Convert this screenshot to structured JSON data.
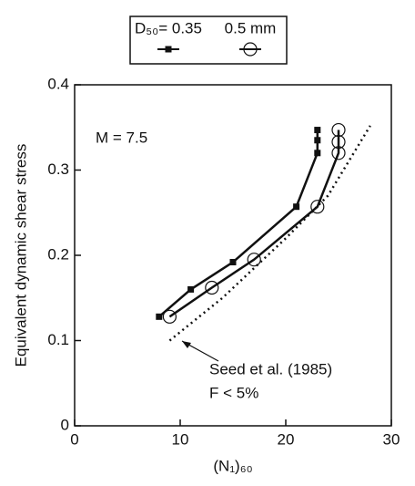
{
  "chart_data": {
    "type": "line",
    "xlabel": "(N₁)₆₀",
    "ylabel": "Equivalent dynamic shear stress",
    "xlim": [
      0,
      30
    ],
    "xticks": [
      0,
      10,
      20,
      30
    ],
    "ylim": [
      0,
      0.4
    ],
    "yticks": [
      0,
      0.1,
      0.2,
      0.3,
      0.4
    ],
    "series": [
      {
        "name": "D₅₀= 0.35",
        "color": "#111111",
        "marker": "square",
        "x": [
          8,
          11,
          15,
          21,
          23,
          23,
          23
        ],
        "values": [
          0.128,
          0.16,
          0.192,
          0.257,
          0.32,
          0.335,
          0.347
        ]
      },
      {
        "name": "0.5 mm",
        "color": "#111111",
        "marker": "circle",
        "x": [
          9,
          13,
          17,
          23,
          25,
          25,
          25
        ],
        "values": [
          0.128,
          0.162,
          0.195,
          0.257,
          0.32,
          0.333,
          0.347
        ]
      }
    ],
    "reference": {
      "x": [
        9,
        14,
        20,
        24,
        28
      ],
      "values": [
        0.1,
        0.15,
        0.22,
        0.27,
        0.352
      ]
    },
    "annotations": [
      "M = 7.5",
      "Seed et al. (1985)",
      "F < 5%"
    ]
  }
}
